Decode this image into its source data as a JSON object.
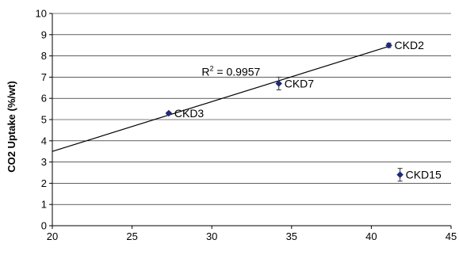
{
  "chart_data": {
    "type": "scatter",
    "title": "",
    "xlabel": "",
    "ylabel": "CO2 Uptake (%/wt)",
    "xlim": [
      20,
      45
    ],
    "ylim": [
      0,
      10
    ],
    "xticks": [
      "20",
      "25",
      "30",
      "35",
      "40",
      "45"
    ],
    "yticks": [
      "0",
      "1",
      "2",
      "3",
      "4",
      "5",
      "6",
      "7",
      "8",
      "9",
      "10"
    ],
    "grid": "horizontal",
    "points": [
      {
        "label": "CKD2",
        "x": 41.1,
        "y": 8.5,
        "err": 0.1
      },
      {
        "label": "CKD7",
        "x": 34.2,
        "y": 6.7,
        "err": 0.3
      },
      {
        "label": "CKD3",
        "x": 27.3,
        "y": 5.3,
        "err": 0.05
      },
      {
        "label": "CKD15",
        "x": 41.8,
        "y": 2.4,
        "err": 0.3
      }
    ],
    "trendline": {
      "x": [
        20,
        41.1
      ],
      "y": [
        3.5,
        8.45
      ],
      "annotation_base": "R",
      "annotation_sup": "2",
      "annotation_rest": " = 0.9957",
      "annotation_at": {
        "x": 31.2,
        "y": 7.25
      }
    },
    "colors": {
      "marker": "#1f2a7a",
      "line": "#000000",
      "grid": "#000000"
    }
  }
}
